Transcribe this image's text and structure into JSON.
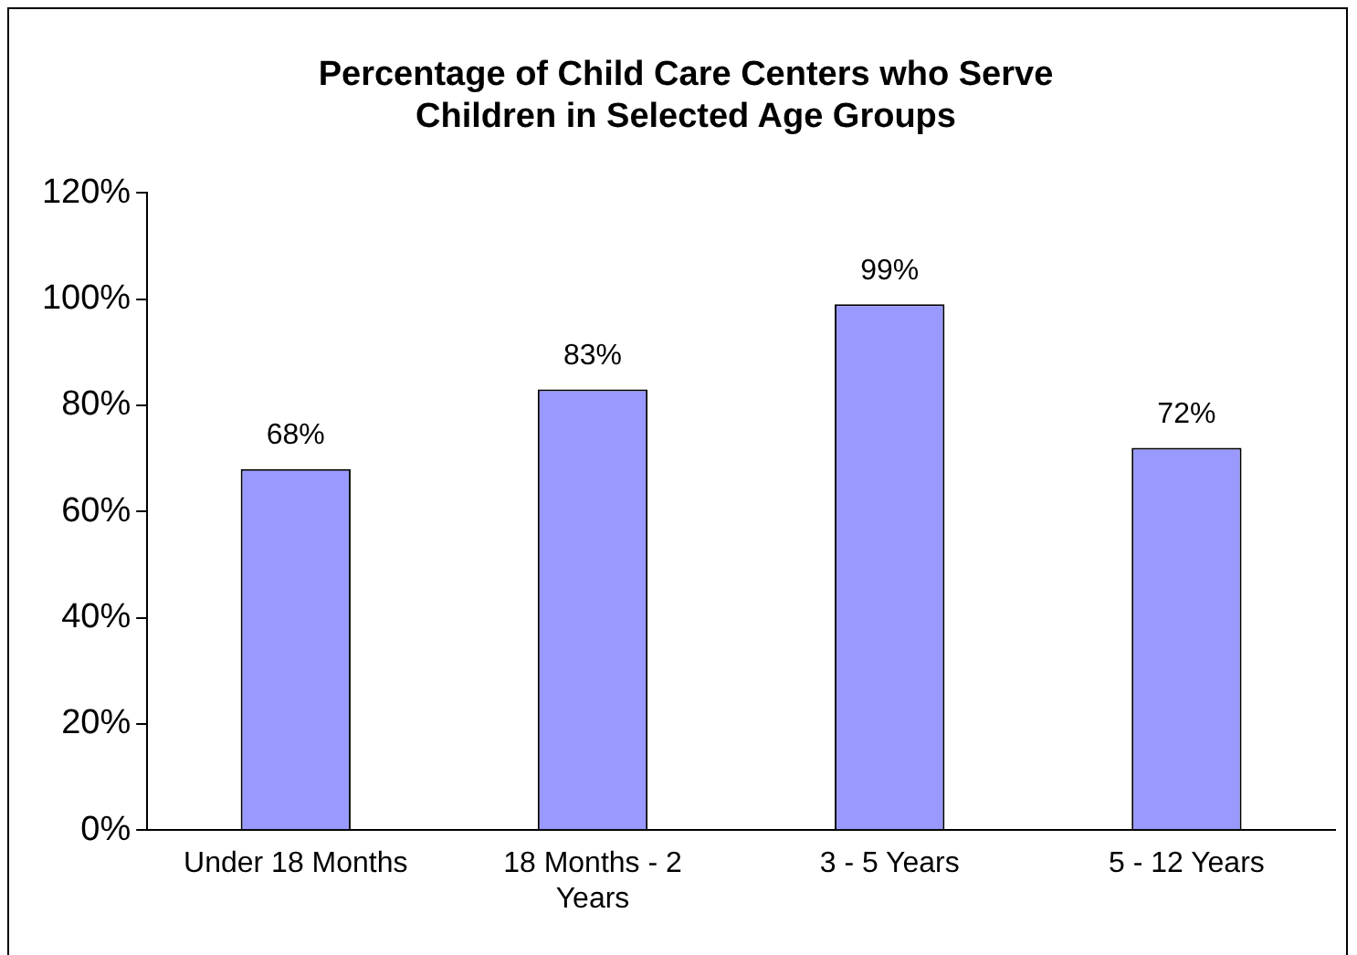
{
  "chart_data": {
    "type": "bar",
    "title": "Percentage of Child Care Centers who Serve Children in Selected Age Groups",
    "categories": [
      "Under 18 Months",
      "18 Months - 2 Years",
      "3 - 5 Years",
      "5 - 12 Years"
    ],
    "values": [
      68,
      83,
      99,
      72
    ],
    "value_labels": [
      "68%",
      "83%",
      "99%",
      "72%"
    ],
    "color": "#9999ff",
    "ylim": [
      0,
      120
    ],
    "yticks": [
      {
        "value": 0,
        "label": "0%"
      },
      {
        "value": 20,
        "label": "20%"
      },
      {
        "value": 40,
        "label": "40%"
      },
      {
        "value": 60,
        "label": "60%"
      },
      {
        "value": 80,
        "label": "80%"
      },
      {
        "value": 100,
        "label": "100%"
      },
      {
        "value": 120,
        "label": "120%"
      }
    ],
    "grid": false,
    "legend": false
  }
}
